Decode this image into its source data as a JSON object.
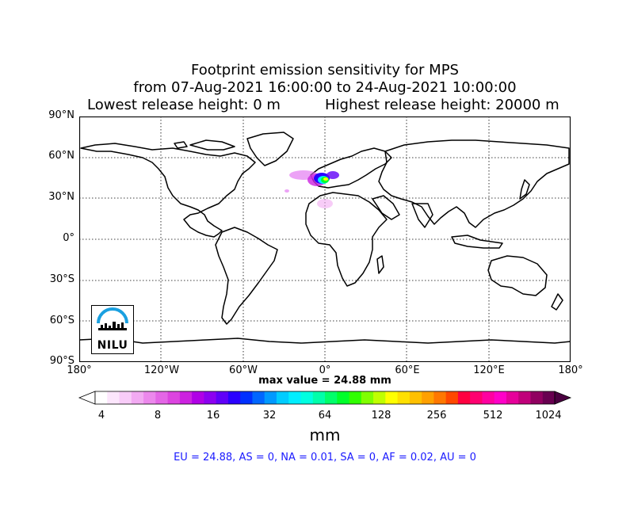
{
  "title": {
    "line1": "Footprint emission sensitivity for MPS",
    "line2": "from 07-Aug-2021 16:00:00 to 24-Aug-2021 10:00:00",
    "release_low": "Lowest release height: 0 m",
    "release_high": "Highest release height: 20000 m"
  },
  "map": {
    "lat_ticks": [
      "90°N",
      "60°N",
      "30°N",
      "0°",
      "30°S",
      "60°S",
      "90°S"
    ],
    "lon_ticks": [
      "180°",
      "120°W",
      "60°W",
      "0°",
      "60°E",
      "120°E",
      "180°"
    ],
    "grid": "dotted",
    "logo_text": "NILU"
  },
  "max_value": "max value = 24.88 mm",
  "colorbar": {
    "ticks": [
      "4",
      "8",
      "16",
      "32",
      "64",
      "128",
      "256",
      "512",
      "1024"
    ],
    "unit": "mm",
    "colors": [
      "#ffffff",
      "#fce6fc",
      "#f8ccf8",
      "#f2aaf2",
      "#ec88ec",
      "#e466e6",
      "#dc44e0",
      "#cc22e0",
      "#b000e6",
      "#8c00f0",
      "#6000f8",
      "#2a00ff",
      "#0030ff",
      "#0066ff",
      "#0099ff",
      "#00ccff",
      "#00eeff",
      "#00ffe0",
      "#00ffaa",
      "#00ff6a",
      "#00ff2a",
      "#30ff00",
      "#80ff00",
      "#c0ff00",
      "#ffff00",
      "#ffe000",
      "#ffc000",
      "#ffa000",
      "#ff7800",
      "#ff4800",
      "#ff0040",
      "#ff0070",
      "#ff00a0",
      "#ff00c8",
      "#e6009a",
      "#c0007a",
      "#900060",
      "#680050"
    ],
    "extend_left": "#ffffff",
    "extend_right": "#4a0040"
  },
  "summary": "EU = 24.88,  AS = 0,  NA = 0.01,  SA = 0,  AF = 0.02,  AU = 0"
}
